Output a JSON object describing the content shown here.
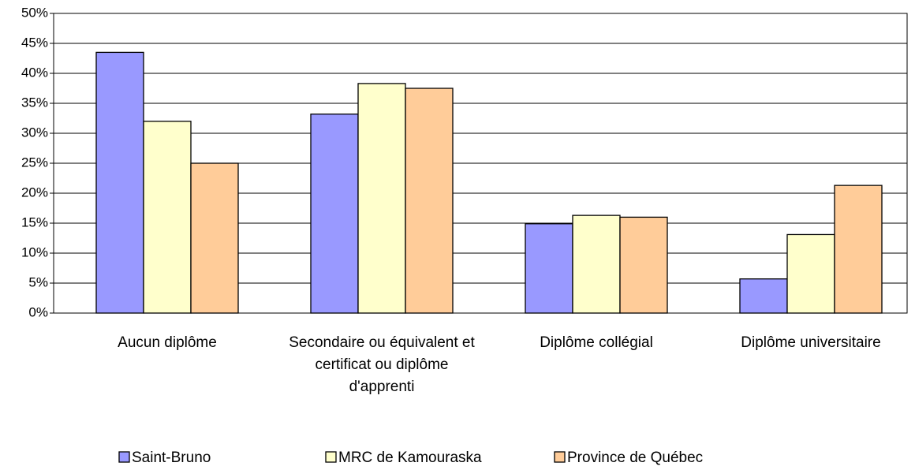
{
  "chart_data": {
    "type": "bar",
    "categories": [
      "Aucun diplôme",
      "Secondaire ou équivalent et certificat ou diplôme d'apprenti",
      "Diplôme collégial",
      "Diplôme universitaire"
    ],
    "series": [
      {
        "name": "Saint-Bruno",
        "color": "#9999ff",
        "values": [
          43.5,
          33.2,
          14.9,
          5.7
        ]
      },
      {
        "name": "MRC de Kamouraska",
        "color": "#ffffcc",
        "values": [
          32,
          38.3,
          16.3,
          13.1
        ]
      },
      {
        "name": "Province de Québec",
        "color": "#ffcc99",
        "values": [
          25,
          37.5,
          16,
          21.3
        ]
      }
    ],
    "ylim": [
      0,
      50
    ],
    "yticks": [
      {
        "value": 0,
        "label": "0%"
      },
      {
        "value": 5,
        "label": "5%"
      },
      {
        "value": 10,
        "label": "10%"
      },
      {
        "value": 15,
        "label": "15%"
      },
      {
        "value": 20,
        "label": "20%"
      },
      {
        "value": 25,
        "label": "25%"
      },
      {
        "value": 30,
        "label": "30%"
      },
      {
        "value": 35,
        "label": "35%"
      },
      {
        "value": 40,
        "label": "40%"
      },
      {
        "value": 45,
        "label": "45%"
      },
      {
        "value": 50,
        "label": "50%"
      }
    ],
    "grid": true,
    "legend": "bottom"
  }
}
